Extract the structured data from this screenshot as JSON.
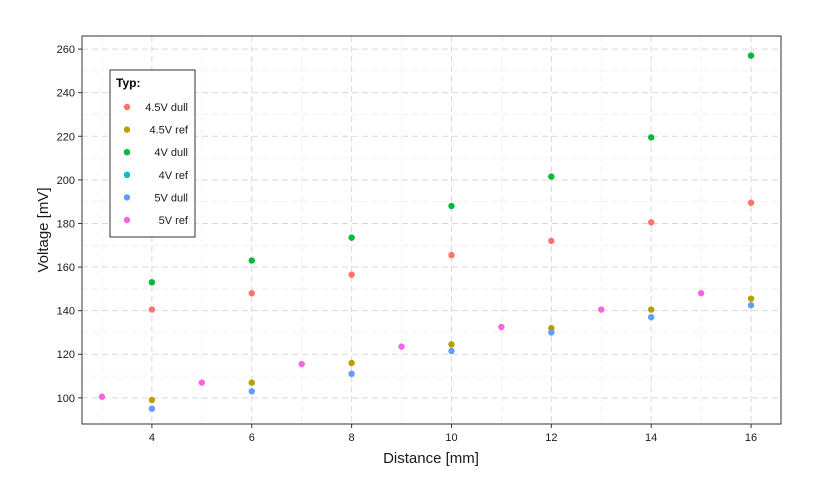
{
  "chart_data": {
    "type": "scatter",
    "xlabel": "Distance [mm]",
    "ylabel": "Voltage [mV]",
    "xlim": [
      2.6,
      16.6
    ],
    "ylim": [
      88,
      266
    ],
    "xticks": [
      4,
      6,
      8,
      10,
      12,
      14,
      16
    ],
    "yticks": [
      100,
      120,
      140,
      160,
      180,
      200,
      220,
      240,
      260
    ],
    "grid": true,
    "legend": {
      "title": "Typ:",
      "position": "top-left"
    },
    "series": [
      {
        "name": "4.5V dull",
        "color": "#F8766D",
        "points": [
          [
            4,
            140.5
          ],
          [
            6,
            148
          ],
          [
            8,
            156.5
          ],
          [
            10,
            165.5
          ],
          [
            12,
            172
          ],
          [
            14,
            180.5
          ],
          [
            16,
            189.5
          ]
        ]
      },
      {
        "name": "4.5V ref",
        "color": "#B79F00",
        "points": [
          [
            4,
            99
          ],
          [
            6,
            107
          ],
          [
            8,
            116
          ],
          [
            10,
            124.5
          ],
          [
            12,
            132
          ],
          [
            14,
            140.5
          ],
          [
            16,
            145.5
          ]
        ]
      },
      {
        "name": "4V dull",
        "color": "#00BA38",
        "points": [
          [
            4,
            153
          ],
          [
            6,
            163
          ],
          [
            8,
            173.5
          ],
          [
            10,
            188
          ],
          [
            12,
            201.5
          ],
          [
            14,
            219.5
          ],
          [
            16,
            257
          ]
        ]
      },
      {
        "name": "4V ref",
        "color": "#00BFC4",
        "points": []
      },
      {
        "name": "5V dull",
        "color": "#619CFF",
        "points": [
          [
            4,
            95
          ],
          [
            6,
            103
          ],
          [
            8,
            111
          ],
          [
            10,
            121.5
          ],
          [
            12,
            130
          ],
          [
            14,
            137
          ],
          [
            16,
            142.5
          ]
        ]
      },
      {
        "name": "5V ref",
        "color": "#F564E3",
        "points": [
          [
            3,
            100.5
          ],
          [
            5,
            107
          ],
          [
            7,
            115.5
          ],
          [
            9,
            123.5
          ],
          [
            11,
            132.5
          ],
          [
            13,
            140.5
          ],
          [
            15,
            148
          ]
        ]
      }
    ]
  }
}
